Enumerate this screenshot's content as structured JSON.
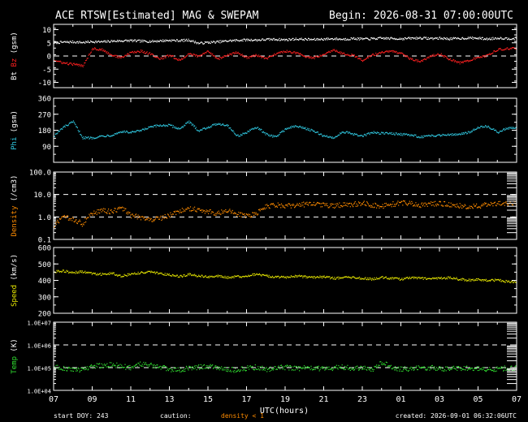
{
  "header": {
    "title": "ACE RTSW[Estimated] MAG & SWEPAM",
    "begin": "Begin: 2026-08-31 07:00:00UTC"
  },
  "footer": {
    "start_doy": "start DOY: 243",
    "caution": "caution:",
    "density_note": "density < 1",
    "created": "created: 2026-09-01 06:32:06UTC"
  },
  "colors": {
    "background": "#000000",
    "axes": "#ffffff",
    "bt": "#ffffff",
    "bz": "#ff2020",
    "phi": "#30c8e0",
    "density": "#ff8c00",
    "speed": "#e6e600",
    "temp": "#30e030"
  },
  "chart_data": {
    "type": "scatter",
    "xlabel": "UTC(hours)",
    "x_ticks": [
      "07",
      "09",
      "11",
      "13",
      "15",
      "17",
      "19",
      "21",
      "23",
      "01",
      "03",
      "05",
      "07"
    ],
    "x_range_hours": [
      0,
      24
    ],
    "panels": [
      {
        "id": "mag",
        "ylabel_parts": [
          {
            "text": "Bt",
            "color": "#ffffff"
          },
          {
            "text": "Bz",
            "color": "#ff2020"
          },
          {
            "text": "(gsm)",
            "color": "#ffffff"
          }
        ],
        "scale": "linear",
        "ylim": [
          -12,
          12
        ],
        "y_ticks": [
          "-10",
          "-5",
          "0",
          "5",
          "10"
        ],
        "y_tick_values": [
          -10,
          -5,
          0,
          5,
          10
        ],
        "dashed_lines": [
          0
        ],
        "series": [
          {
            "name": "Bt",
            "color": "#ffffff",
            "x": [
              0,
              0.5,
              1,
              1.5,
              2,
              2.5,
              3,
              3.5,
              4,
              4.5,
              5,
              5.5,
              6,
              6.5,
              7,
              7.5,
              8,
              8.5,
              9,
              9.5,
              10,
              10.5,
              11,
              11.5,
              12,
              12.5,
              13,
              13.5,
              14,
              14.5,
              15,
              15.5,
              16,
              16.5,
              17,
              17.5,
              18,
              18.5,
              19,
              19.5,
              20,
              20.5,
              21,
              21.5,
              22,
              22.5,
              23,
              23.5
            ],
            "y": [
              5.2,
              5.4,
              5.5,
              5.3,
              5.6,
              5.5,
              5.8,
              5.9,
              6.0,
              5.8,
              5.7,
              5.9,
              6.1,
              6.0,
              6.2,
              5.0,
              5.3,
              5.5,
              5.9,
              6.1,
              6.3,
              6.2,
              6.4,
              6.5,
              6.3,
              6.6,
              6.5,
              6.4,
              6.6,
              6.7,
              6.5,
              6.8,
              6.6,
              6.7,
              6.9,
              6.8,
              6.7,
              6.9,
              7.0,
              6.8,
              6.9,
              6.7,
              6.8,
              7.0,
              6.9,
              6.6,
              7.0,
              6.8
            ]
          },
          {
            "name": "Bz",
            "color": "#ff2020",
            "x": [
              0,
              0.5,
              1,
              1.5,
              2,
              2.5,
              3,
              3.5,
              4,
              4.5,
              5,
              5.5,
              6,
              6.5,
              7,
              7.5,
              8,
              8.5,
              9,
              9.5,
              10,
              10.5,
              11,
              11.5,
              12,
              12.5,
              13,
              13.5,
              14,
              14.5,
              15,
              15.5,
              16,
              16.5,
              17,
              17.5,
              18,
              18.5,
              19,
              19.5,
              20,
              20.5,
              21,
              21.5,
              22,
              22.5,
              23,
              23.5
            ],
            "y": [
              -1.5,
              -2.5,
              -3.0,
              -3.5,
              3.0,
              2.5,
              0.5,
              -0.5,
              1.5,
              2.0,
              1.0,
              -1.0,
              0.5,
              -1.5,
              1.0,
              0.0,
              2.0,
              -1.0,
              0.5,
              1.5,
              -0.5,
              0.5,
              -1.0,
              1.0,
              2.0,
              1.5,
              0.0,
              -0.5,
              1.0,
              2.5,
              1.0,
              0.5,
              -1.5,
              0.5,
              1.5,
              2.0,
              1.0,
              -1.0,
              -2.0,
              0.0,
              1.0,
              -1.0,
              -2.5,
              -1.5,
              -0.5,
              0.5,
              2.5,
              3.0
            ]
          }
        ]
      },
      {
        "id": "phi",
        "ylabel_parts": [
          {
            "text": "Phi",
            "color": "#30c8e0"
          },
          {
            "text": "(gsm)",
            "color": "#ffffff"
          }
        ],
        "scale": "linear",
        "ylim": [
          0,
          360
        ],
        "y_ticks": [
          "90",
          "180",
          "270",
          "360"
        ],
        "y_tick_values": [
          90,
          180,
          270,
          360
        ],
        "dashed_lines": [],
        "series": [
          {
            "name": "Phi",
            "color": "#30c8e0",
            "x": [
              0,
              0.5,
              1,
              1.5,
              2,
              2.5,
              3,
              3.5,
              4,
              4.5,
              5,
              5.5,
              6,
              6.5,
              7,
              7.5,
              8,
              8.5,
              9,
              9.5,
              10,
              10.5,
              11,
              11.5,
              12,
              12.5,
              13,
              13.5,
              14,
              14.5,
              15,
              15.5,
              16,
              16.5,
              17,
              17.5,
              18,
              18.5,
              19,
              19.5,
              20,
              20.5,
              21,
              21.5,
              22,
              22.5,
              23,
              23.5
            ],
            "y": [
              150,
              200,
              230,
              140,
              140,
              150,
              155,
              175,
              170,
              180,
              200,
              210,
              210,
              190,
              230,
              180,
              200,
              220,
              210,
              150,
              170,
              200,
              160,
              145,
              190,
              205,
              195,
              175,
              150,
              140,
              175,
              160,
              150,
              170,
              165,
              165,
              160,
              155,
              145,
              150,
              155,
              160,
              160,
              170,
              200,
              205,
              170,
              195
            ]
          }
        ]
      },
      {
        "id": "density",
        "ylabel_parts": [
          {
            "text": "Density",
            "color": "#ff8c00"
          },
          {
            "text": "(/cm3)",
            "color": "#ffffff"
          }
        ],
        "scale": "log",
        "ylim": [
          0.1,
          100
        ],
        "y_ticks": [
          "0.1",
          "1.0",
          "10.0",
          "100.0"
        ],
        "y_tick_values": [
          0.1,
          1,
          10,
          100
        ],
        "dashed_lines": [
          1,
          10
        ],
        "series": [
          {
            "name": "Density",
            "color": "#ff8c00",
            "x": [
              0,
              0.5,
              1,
              1.5,
              2,
              2.5,
              3,
              3.5,
              4,
              4.5,
              5,
              5.5,
              6,
              6.5,
              7,
              7.5,
              8,
              8.5,
              9,
              9.5,
              10,
              10.5,
              11,
              11.5,
              12,
              12.5,
              13,
              13.5,
              14,
              14.5,
              15,
              15.5,
              16,
              16.5,
              17,
              17.5,
              18,
              18.5,
              19,
              19.5,
              20,
              20.5,
              21,
              21.5,
              22,
              22.5,
              23,
              23.5
            ],
            "y": [
              0.4,
              1.0,
              0.8,
              0.5,
              1.5,
              2.0,
              1.8,
              2.5,
              1.2,
              1.0,
              0.8,
              0.9,
              1.2,
              2.0,
              2.5,
              2.2,
              1.8,
              1.5,
              2.0,
              1.4,
              1.2,
              1.5,
              3.0,
              3.5,
              3.2,
              3.4,
              3.8,
              4.0,
              3.5,
              3.2,
              3.6,
              3.8,
              4.2,
              3.5,
              3.2,
              3.8,
              4.5,
              4.0,
              3.5,
              3.8,
              4.2,
              3.6,
              3.4,
              3.0,
              3.2,
              3.8,
              4.0,
              4.2
            ]
          }
        ]
      },
      {
        "id": "speed",
        "ylabel_parts": [
          {
            "text": "Speed",
            "color": "#e6e600"
          },
          {
            "text": "(km/s)",
            "color": "#ffffff"
          }
        ],
        "scale": "linear",
        "ylim": [
          200,
          600
        ],
        "y_ticks": [
          "200",
          "300",
          "400",
          "500",
          "600"
        ],
        "y_tick_values": [
          200,
          300,
          400,
          500,
          600
        ],
        "dashed_lines": [],
        "series": [
          {
            "name": "Speed",
            "color": "#e6e600",
            "x": [
              0,
              0.5,
              1,
              1.5,
              2,
              2.5,
              3,
              3.5,
              4,
              4.5,
              5,
              5.5,
              6,
              6.5,
              7,
              7.5,
              8,
              8.5,
              9,
              9.5,
              10,
              10.5,
              11,
              11.5,
              12,
              12.5,
              13,
              13.5,
              14,
              14.5,
              15,
              15.5,
              16,
              16.5,
              17,
              17.5,
              18,
              18.5,
              19,
              19.5,
              20,
              20.5,
              21,
              21.5,
              22,
              22.5,
              23,
              23.5
            ],
            "y": [
              455,
              460,
              450,
              455,
              445,
              440,
              445,
              430,
              440,
              450,
              455,
              445,
              435,
              425,
              440,
              430,
              425,
              430,
              420,
              425,
              430,
              440,
              430,
              425,
              420,
              430,
              425,
              420,
              425,
              415,
              420,
              420,
              415,
              410,
              420,
              415,
              410,
              420,
              415,
              410,
              415,
              420,
              410,
              405,
              410,
              400,
              405,
              395
            ]
          }
        ]
      },
      {
        "id": "temp",
        "ylabel_parts": [
          {
            "text": "Temp",
            "color": "#30e030"
          },
          {
            "text": "(K)",
            "color": "#ffffff"
          }
        ],
        "scale": "log",
        "ylim": [
          10000,
          10000000
        ],
        "y_ticks": [
          "1.0E+04",
          "1.0E+05",
          "1.0E+06",
          "1.0E+07"
        ],
        "y_tick_values": [
          10000,
          100000,
          1000000,
          10000000
        ],
        "dashed_lines": [
          100000,
          1000000
        ],
        "series": [
          {
            "name": "Temp",
            "color": "#30e030",
            "x": [
              0,
              0.5,
              1,
              1.5,
              2,
              2.5,
              3,
              3.5,
              4,
              4.5,
              5,
              5.5,
              6,
              6.5,
              7,
              7.5,
              8,
              8.5,
              9,
              9.5,
              10,
              10.5,
              11,
              11.5,
              12,
              12.5,
              13,
              13.5,
              14,
              14.5,
              15,
              15.5,
              16,
              16.5,
              17,
              17.5,
              18,
              18.5,
              19,
              19.5,
              20,
              20.5,
              21,
              21.5,
              22,
              22.5,
              23,
              23.5
            ],
            "y": [
              110000,
              100000,
              80000,
              90000,
              120000,
              130000,
              140000,
              120000,
              100000,
              150000,
              130000,
              110000,
              90000,
              80000,
              100000,
              110000,
              120000,
              110000,
              90000,
              80000,
              100000,
              110000,
              90000,
              100000,
              110000,
              95000,
              100000,
              105000,
              90000,
              100000,
              110000,
              95000,
              100000,
              85000,
              180000,
              100000,
              90000,
              95000,
              100000,
              105000,
              95000,
              90000,
              100000,
              95000,
              90000,
              85000,
              90000,
              100000
            ]
          }
        ]
      }
    ]
  }
}
